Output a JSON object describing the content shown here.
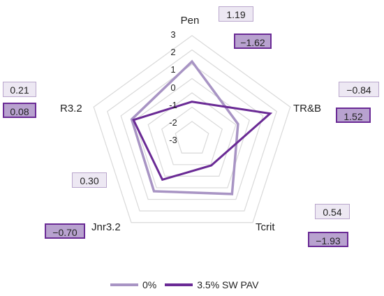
{
  "chart_data": {
    "type": "radar",
    "categories": [
      "Pen",
      "TR&B",
      "Tcrit",
      "Jnr3.2",
      "R3.2"
    ],
    "scale": {
      "min": -3,
      "max": 3,
      "step": 1
    },
    "tick_labels": [
      "-3",
      "-2",
      "-1",
      "0",
      "1",
      "2",
      "3"
    ],
    "series": [
      {
        "name": "0%",
        "color": "#a894c4",
        "values": [
          1.19,
          -0.84,
          0.54,
          0.3,
          0.21
        ]
      },
      {
        "name": "3.5% SW PAV",
        "color": "#6a2a95",
        "values": [
          -1.62,
          1.52,
          -1.93,
          -0.7,
          0.08
        ]
      }
    ],
    "value_labels": {
      "pen": {
        "light": "1.19",
        "dark": "−1.62"
      },
      "trb": {
        "light": "−0.84",
        "dark": "1.52"
      },
      "tcrit": {
        "light": "0.54",
        "dark": "−1.93"
      },
      "jnr": {
        "light": "0.30",
        "dark": "−0.70"
      },
      "r": {
        "light": "0.21",
        "dark": "0.08"
      }
    },
    "legend": {
      "position": "bottom"
    },
    "grid": true
  }
}
